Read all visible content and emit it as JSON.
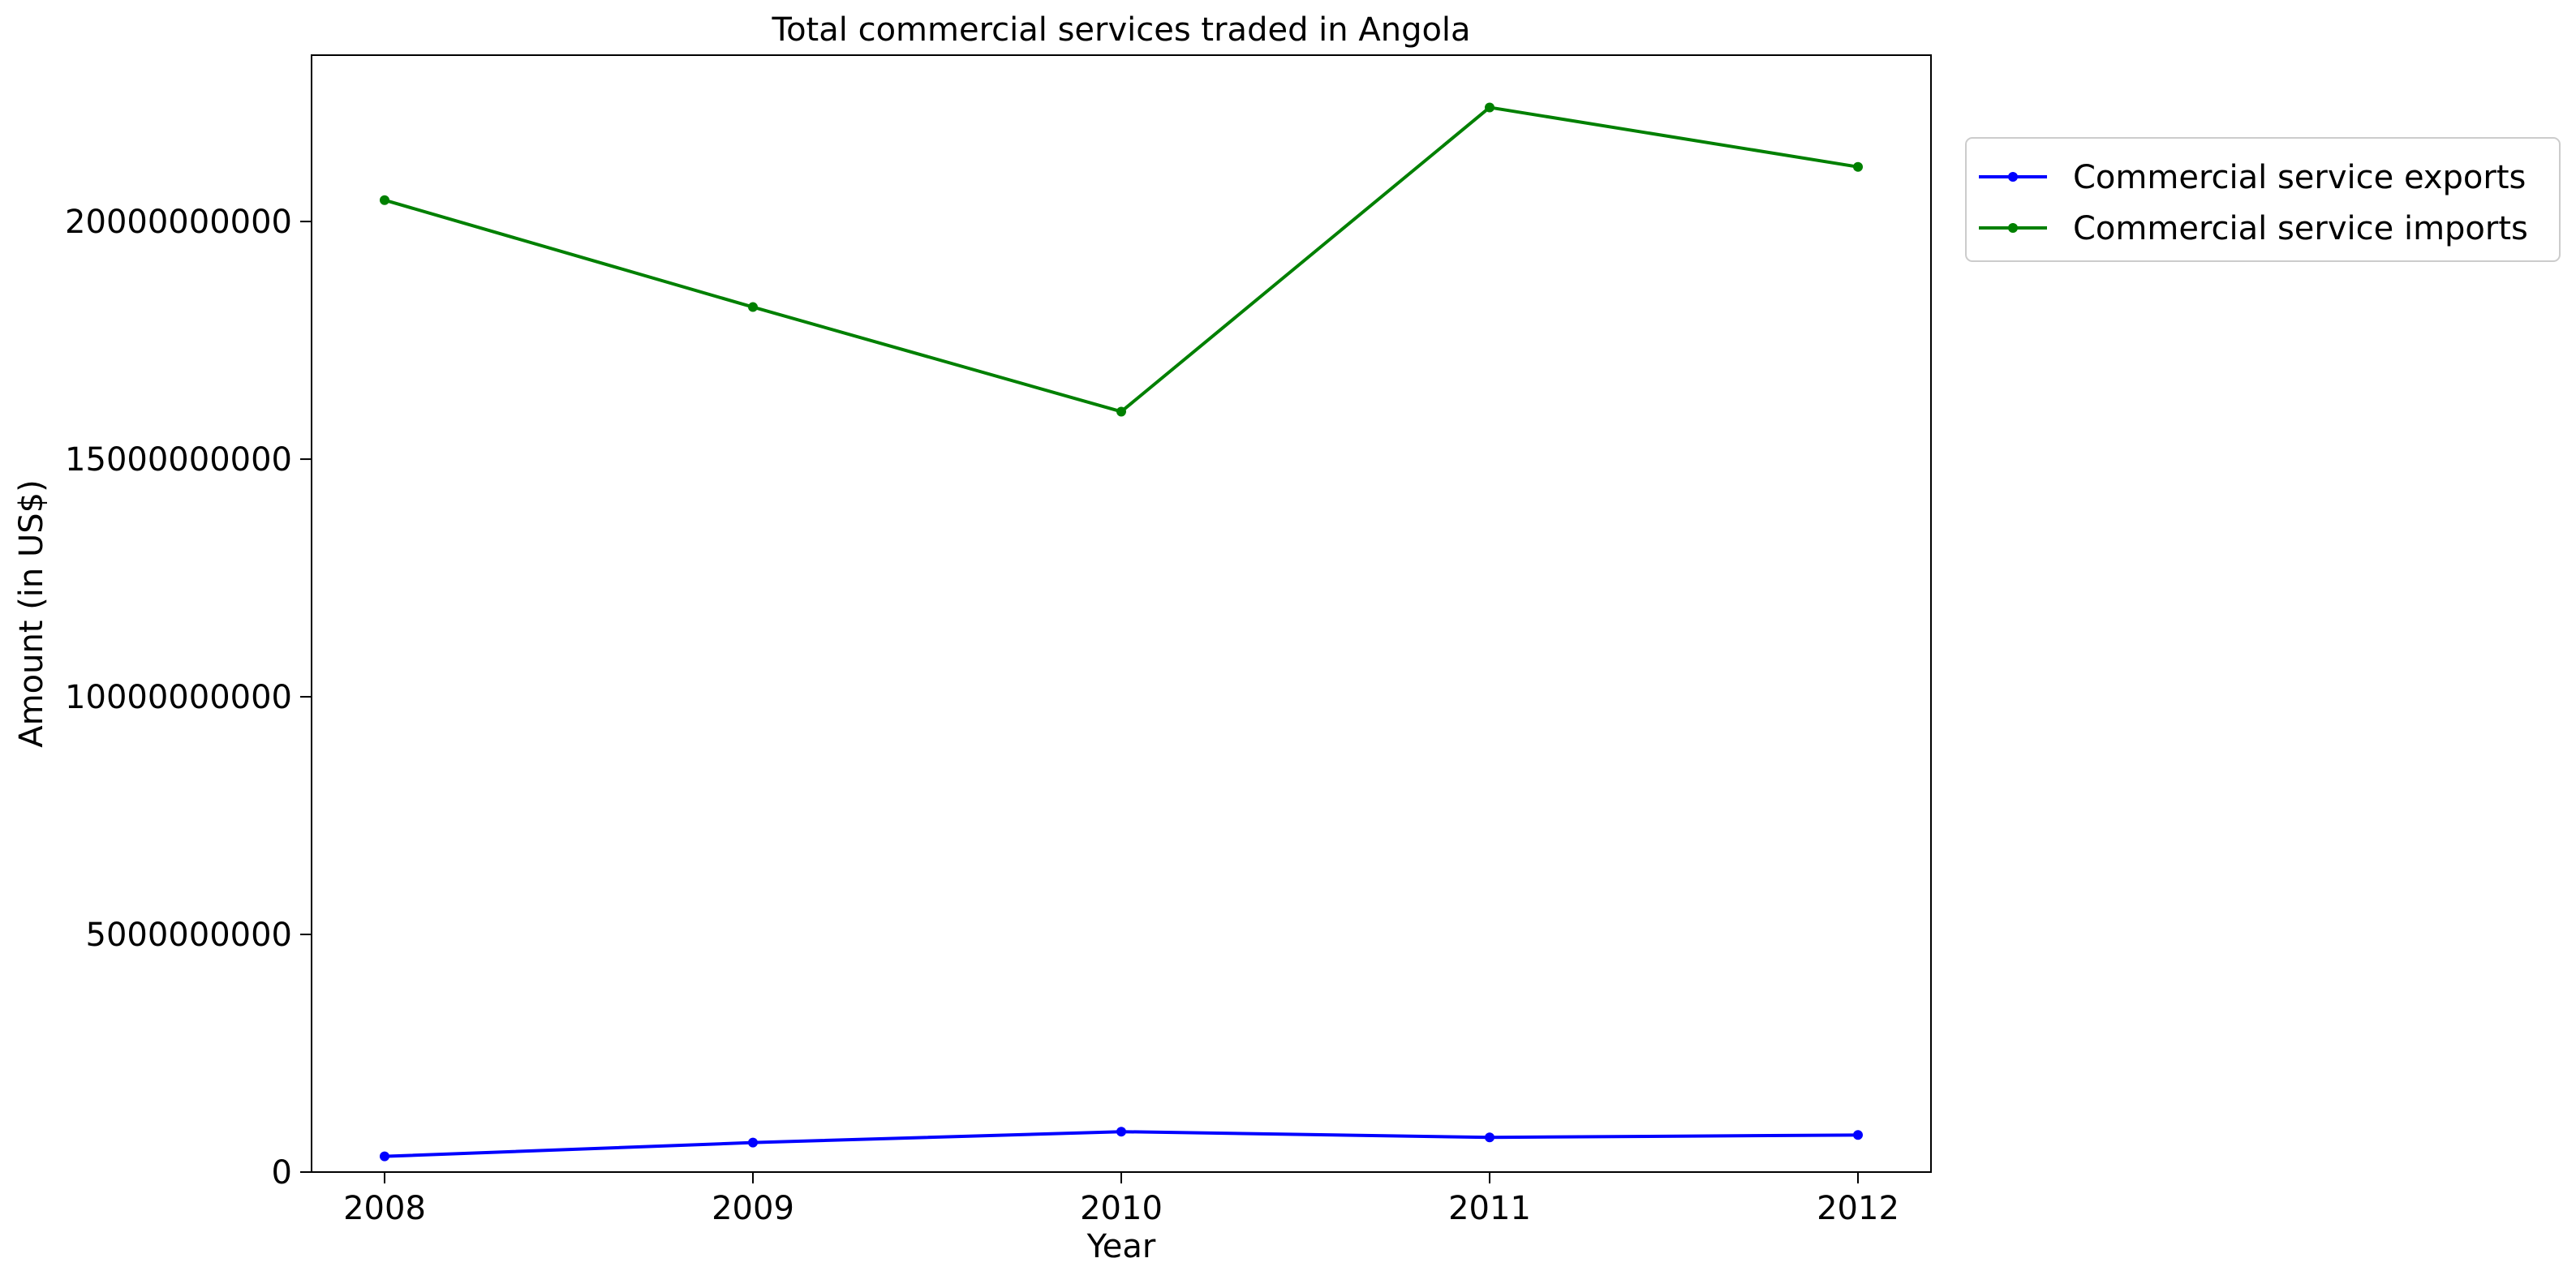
{
  "chart_data": {
    "type": "line",
    "title": "Total commercial services traded in Angola",
    "xlabel": "Year",
    "ylabel": "Amount (in US$)",
    "x": [
      2008,
      2009,
      2010,
      2011,
      2012
    ],
    "x_tick_labels": [
      "2008",
      "2009",
      "2010",
      "2011",
      "2012"
    ],
    "y_ticks": [
      0,
      5000000000,
      10000000000,
      15000000000,
      20000000000
    ],
    "y_tick_labels": [
      "0",
      "5000000000",
      "10000000000",
      "15000000000",
      "20000000000"
    ],
    "ylim": [
      0,
      23500000000
    ],
    "grid": false,
    "legend_position": "outside upper right",
    "series": [
      {
        "name": "Commercial service exports",
        "color": "#0000ff",
        "marker": "circle",
        "values": [
          330000000,
          620000000,
          850000000,
          730000000,
          780000000
        ]
      },
      {
        "name": "Commercial service imports",
        "color": "#008000",
        "marker": "circle",
        "values": [
          20450000000,
          18200000000,
          16000000000,
          22400000000,
          21150000000
        ]
      }
    ]
  }
}
